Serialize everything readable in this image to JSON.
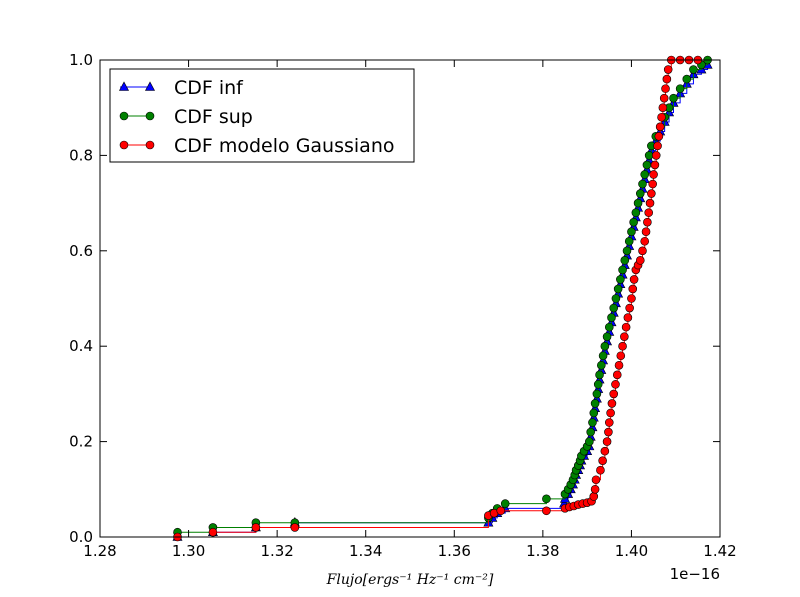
{
  "chart_data": {
    "type": "line",
    "title": "",
    "xlabel": "Flujo[ergs⁻¹ Hz⁻¹ cm⁻²]",
    "ylabel": "",
    "x_offset_label": "1e−16",
    "xlim": [
      1.28,
      1.42
    ],
    "ylim": [
      0.0,
      1.0
    ],
    "x_ticks": [
      "1.28",
      "1.30",
      "1.32",
      "1.34",
      "1.36",
      "1.38",
      "1.40",
      "1.42"
    ],
    "y_ticks": [
      "0.0",
      "0.2",
      "0.4",
      "0.6",
      "0.8",
      "1.0"
    ],
    "grid": false,
    "legend_position": "top-left",
    "series": [
      {
        "name": "CDF inf",
        "color": "#0000ff",
        "marker": "triangle",
        "points": [
          [
            1.2975,
            0.0
          ],
          [
            1.3055,
            0.01
          ],
          [
            1.3152,
            0.02
          ],
          [
            1.324,
            0.03
          ],
          [
            1.3677,
            0.03
          ],
          [
            1.3686,
            0.04
          ],
          [
            1.3697,
            0.05
          ],
          [
            1.3715,
            0.06
          ],
          [
            1.3848,
            0.07
          ],
          [
            1.385,
            0.08
          ],
          [
            1.3857,
            0.09
          ],
          [
            1.3863,
            0.1
          ],
          [
            1.3868,
            0.11
          ],
          [
            1.3872,
            0.12
          ],
          [
            1.3875,
            0.13
          ],
          [
            1.388,
            0.14
          ],
          [
            1.3884,
            0.15
          ],
          [
            1.3887,
            0.16
          ],
          [
            1.3893,
            0.17
          ],
          [
            1.39,
            0.18
          ],
          [
            1.3905,
            0.19
          ],
          [
            1.3908,
            0.21
          ],
          [
            1.3912,
            0.23
          ],
          [
            1.3915,
            0.25
          ],
          [
            1.3918,
            0.27
          ],
          [
            1.3922,
            0.29
          ],
          [
            1.3925,
            0.31
          ],
          [
            1.3928,
            0.33
          ],
          [
            1.3932,
            0.35
          ],
          [
            1.3936,
            0.37
          ],
          [
            1.394,
            0.39
          ],
          [
            1.3945,
            0.41
          ],
          [
            1.395,
            0.43
          ],
          [
            1.3955,
            0.45
          ],
          [
            1.396,
            0.47
          ],
          [
            1.3965,
            0.49
          ],
          [
            1.397,
            0.51
          ],
          [
            1.3975,
            0.53
          ],
          [
            1.398,
            0.55
          ],
          [
            1.3985,
            0.57
          ],
          [
            1.399,
            0.59
          ],
          [
            1.3995,
            0.61
          ],
          [
            1.4,
            0.63
          ],
          [
            1.4005,
            0.65
          ],
          [
            1.401,
            0.67
          ],
          [
            1.4015,
            0.69
          ],
          [
            1.402,
            0.71
          ],
          [
            1.4025,
            0.73
          ],
          [
            1.403,
            0.75
          ],
          [
            1.4035,
            0.77
          ],
          [
            1.404,
            0.79
          ],
          [
            1.4045,
            0.81
          ],
          [
            1.4055,
            0.83
          ],
          [
            1.4065,
            0.85
          ],
          [
            1.4075,
            0.87
          ],
          [
            1.4085,
            0.89
          ],
          [
            1.4095,
            0.91
          ],
          [
            1.411,
            0.93
          ],
          [
            1.4125,
            0.95
          ],
          [
            1.414,
            0.97
          ],
          [
            1.4158,
            0.98
          ],
          [
            1.4172,
            0.99
          ]
        ]
      },
      {
        "name": "CDF sup",
        "color": "#008000",
        "marker": "circle",
        "points": [
          [
            1.2975,
            0.01
          ],
          [
            1.3055,
            0.02
          ],
          [
            1.3152,
            0.03
          ],
          [
            1.324,
            0.03
          ],
          [
            1.3677,
            0.04
          ],
          [
            1.3686,
            0.05
          ],
          [
            1.3697,
            0.06
          ],
          [
            1.3715,
            0.07
          ],
          [
            1.3808,
            0.08
          ],
          [
            1.385,
            0.09
          ],
          [
            1.3857,
            0.1
          ],
          [
            1.3863,
            0.11
          ],
          [
            1.3868,
            0.12
          ],
          [
            1.3872,
            0.13
          ],
          [
            1.3875,
            0.14
          ],
          [
            1.388,
            0.15
          ],
          [
            1.3884,
            0.16
          ],
          [
            1.3887,
            0.17
          ],
          [
            1.3893,
            0.18
          ],
          [
            1.39,
            0.19
          ],
          [
            1.3905,
            0.2
          ],
          [
            1.3908,
            0.22
          ],
          [
            1.3912,
            0.24
          ],
          [
            1.3915,
            0.26
          ],
          [
            1.3918,
            0.28
          ],
          [
            1.3922,
            0.3
          ],
          [
            1.3925,
            0.32
          ],
          [
            1.3928,
            0.34
          ],
          [
            1.3932,
            0.36
          ],
          [
            1.3936,
            0.38
          ],
          [
            1.394,
            0.4
          ],
          [
            1.3945,
            0.42
          ],
          [
            1.395,
            0.44
          ],
          [
            1.3955,
            0.46
          ],
          [
            1.396,
            0.48
          ],
          [
            1.3965,
            0.5
          ],
          [
            1.397,
            0.52
          ],
          [
            1.3975,
            0.54
          ],
          [
            1.398,
            0.56
          ],
          [
            1.3985,
            0.58
          ],
          [
            1.399,
            0.6
          ],
          [
            1.3995,
            0.62
          ],
          [
            1.4,
            0.64
          ],
          [
            1.4005,
            0.66
          ],
          [
            1.401,
            0.68
          ],
          [
            1.4015,
            0.7
          ],
          [
            1.402,
            0.72
          ],
          [
            1.4025,
            0.74
          ],
          [
            1.403,
            0.76
          ],
          [
            1.4035,
            0.78
          ],
          [
            1.404,
            0.8
          ],
          [
            1.4045,
            0.82
          ],
          [
            1.4055,
            0.84
          ],
          [
            1.4065,
            0.86
          ],
          [
            1.4075,
            0.88
          ],
          [
            1.4085,
            0.9
          ],
          [
            1.4095,
            0.92
          ],
          [
            1.411,
            0.94
          ],
          [
            1.4125,
            0.96
          ],
          [
            1.414,
            0.98
          ],
          [
            1.4158,
            0.99
          ],
          [
            1.4172,
            1.0
          ]
        ]
      },
      {
        "name": "CDF modelo Gaussiano",
        "color": "#ff0000",
        "marker": "circle",
        "points": [
          [
            1.2975,
            0.0
          ],
          [
            1.3055,
            0.01
          ],
          [
            1.3152,
            0.02
          ],
          [
            1.324,
            0.02
          ],
          [
            1.3677,
            0.045
          ],
          [
            1.369,
            0.05
          ],
          [
            1.3705,
            0.055
          ],
          [
            1.3808,
            0.055
          ],
          [
            1.385,
            0.06
          ],
          [
            1.386,
            0.063
          ],
          [
            1.387,
            0.065
          ],
          [
            1.388,
            0.068
          ],
          [
            1.389,
            0.07
          ],
          [
            1.39,
            0.072
          ],
          [
            1.391,
            0.075
          ],
          [
            1.3915,
            0.085
          ],
          [
            1.3918,
            0.1
          ],
          [
            1.392,
            0.12
          ],
          [
            1.393,
            0.14
          ],
          [
            1.3935,
            0.16
          ],
          [
            1.394,
            0.18
          ],
          [
            1.3945,
            0.2
          ],
          [
            1.3948,
            0.22
          ],
          [
            1.395,
            0.24
          ],
          [
            1.3953,
            0.26
          ],
          [
            1.3956,
            0.28
          ],
          [
            1.396,
            0.3
          ],
          [
            1.3964,
            0.32
          ],
          [
            1.3968,
            0.34
          ],
          [
            1.3972,
            0.36
          ],
          [
            1.3976,
            0.38
          ],
          [
            1.398,
            0.4
          ],
          [
            1.3984,
            0.42
          ],
          [
            1.3988,
            0.44
          ],
          [
            1.3992,
            0.46
          ],
          [
            1.3996,
            0.48
          ],
          [
            1.4,
            0.5
          ],
          [
            1.4003,
            0.52
          ],
          [
            1.4006,
            0.54
          ],
          [
            1.401,
            0.56
          ],
          [
            1.4015,
            0.57
          ],
          [
            1.402,
            0.58
          ],
          [
            1.4025,
            0.6
          ],
          [
            1.403,
            0.62
          ],
          [
            1.4033,
            0.64
          ],
          [
            1.4036,
            0.66
          ],
          [
            1.4039,
            0.68
          ],
          [
            1.4042,
            0.7
          ],
          [
            1.4045,
            0.72
          ],
          [
            1.4048,
            0.74
          ],
          [
            1.405,
            0.76
          ],
          [
            1.4053,
            0.78
          ],
          [
            1.4056,
            0.8
          ],
          [
            1.4059,
            0.82
          ],
          [
            1.4062,
            0.84
          ],
          [
            1.4065,
            0.86
          ],
          [
            1.4068,
            0.88
          ],
          [
            1.4071,
            0.9
          ],
          [
            1.4074,
            0.92
          ],
          [
            1.4077,
            0.94
          ],
          [
            1.408,
            0.96
          ],
          [
            1.4083,
            0.98
          ],
          [
            1.409,
            1.0
          ],
          [
            1.411,
            1.0
          ],
          [
            1.413,
            1.0
          ],
          [
            1.415,
            1.0
          ]
        ]
      }
    ]
  }
}
